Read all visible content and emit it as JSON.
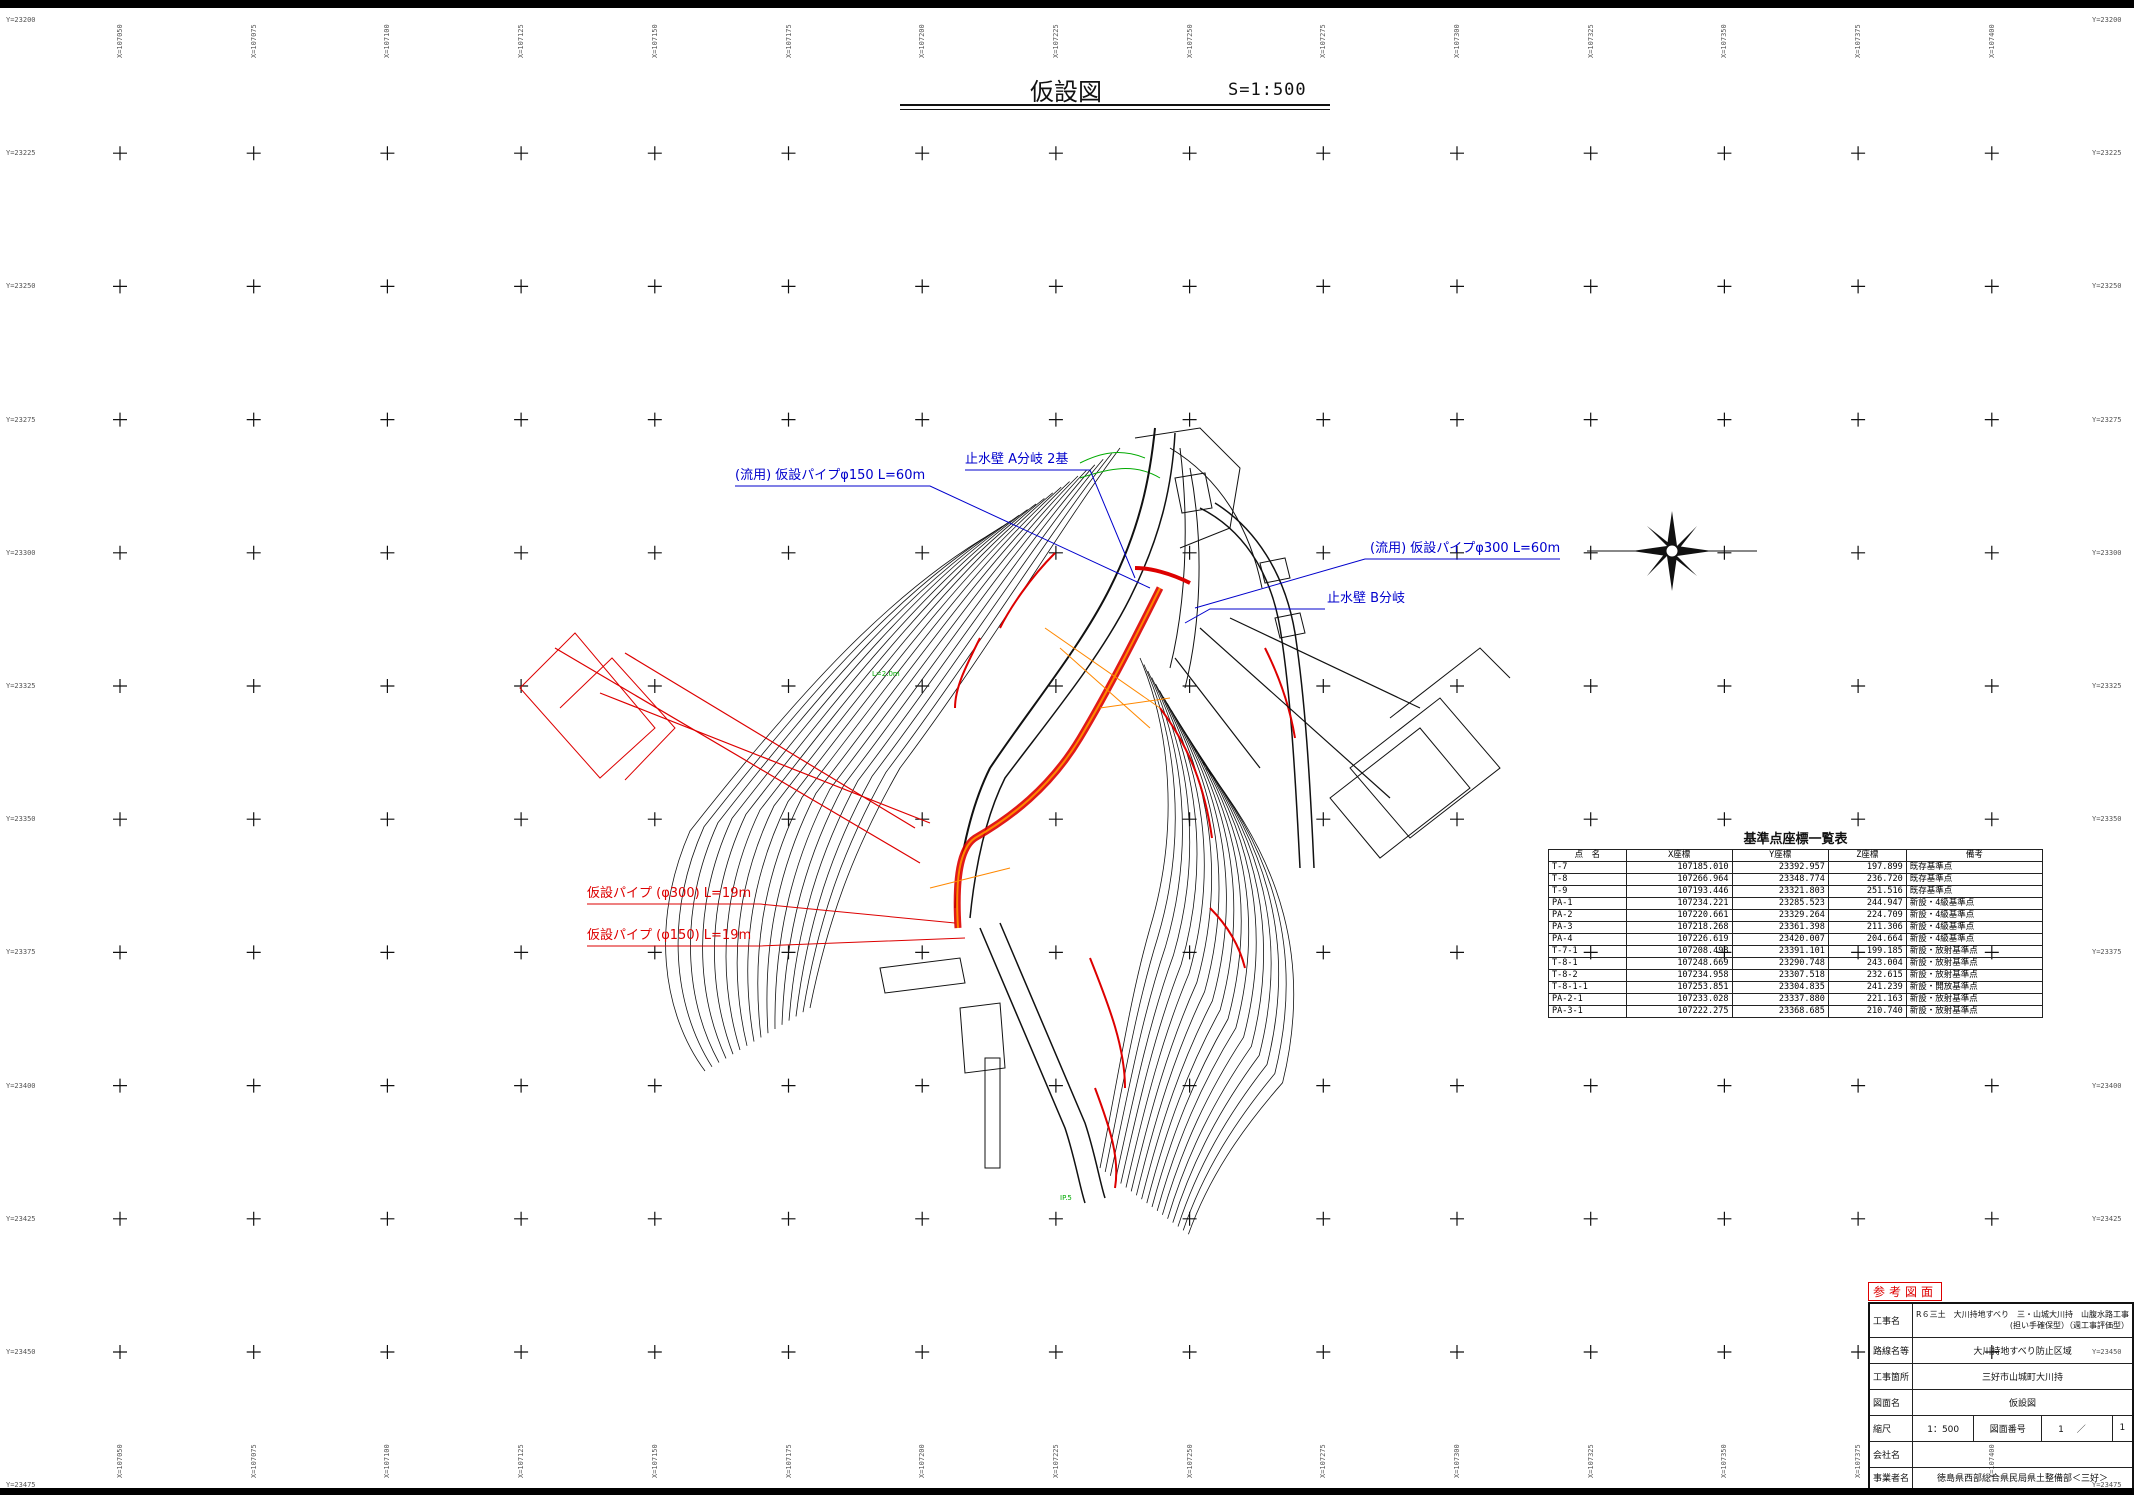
{
  "title": {
    "main": "仮設図",
    "scale": "S=1:500"
  },
  "notes": {
    "pipe150_reuse": "(流用) 仮設パイプφ150 L=60m",
    "wall_a": "止水壁 A分岐 2基",
    "pipe300_reuse": "(流用) 仮設パイプφ300 L=60m",
    "wall_b": "止水壁 B分岐",
    "pipe300": "仮設パイプ (φ300) L=19m",
    "pipe150": "仮設パイプ (φ150) L=19m"
  },
  "grid": {
    "x_labels": [
      "X=107050",
      "X=107075",
      "X=107100",
      "X=107125",
      "X=107150",
      "X=107175",
      "X=107200",
      "X=107225",
      "X=107250",
      "X=107275",
      "X=107300",
      "X=107325",
      "X=107350",
      "X=107375",
      "X=107400"
    ],
    "y_labels": [
      "Y=23200",
      "Y=23225",
      "Y=23250",
      "Y=23275",
      "Y=23300",
      "Y=23325",
      "Y=23350",
      "Y=23375",
      "Y=23400",
      "Y=23425",
      "Y=23450",
      "Y=23475"
    ]
  },
  "benchmark_table": {
    "title": "基準点座標一覧表",
    "headers": [
      "点　名",
      "X座標",
      "Y座標",
      "Z座標",
      "備考"
    ],
    "rows": [
      [
        "T-7",
        "107185.010",
        "23392.957",
        "197.899",
        "既存基準点"
      ],
      [
        "T-8",
        "107266.964",
        "23348.774",
        "236.720",
        "既存基準点"
      ],
      [
        "T-9",
        "107193.446",
        "23321.803",
        "251.516",
        "既存基準点"
      ],
      [
        "PA-1",
        "107234.221",
        "23285.523",
        "244.947",
        "新設・4級基準点"
      ],
      [
        "PA-2",
        "107220.661",
        "23329.264",
        "224.709",
        "新設・4級基準点"
      ],
      [
        "PA-3",
        "107218.268",
        "23361.398",
        "211.306",
        "新設・4級基準点"
      ],
      [
        "PA-4",
        "107226.619",
        "23420.007",
        "204.664",
        "新設・4級基準点"
      ],
      [
        "T-7-1",
        "107208.498",
        "23391.101",
        "199.185",
        "新設・放射基準点"
      ],
      [
        "T-8-1",
        "107248.669",
        "23290.748",
        "243.004",
        "新設・放射基準点"
      ],
      [
        "T-8-2",
        "107234.958",
        "23307.518",
        "232.615",
        "新設・放射基準点"
      ],
      [
        "T-8-1-1",
        "107253.851",
        "23304.835",
        "241.239",
        "新設・開放基準点"
      ],
      [
        "PA-2-1",
        "107233.028",
        "23337.880",
        "221.163",
        "新設・放射基準点"
      ],
      [
        "PA-3-1",
        "107222.275",
        "23368.685",
        "210.740",
        "新設・放射基準点"
      ]
    ]
  },
  "title_block": {
    "reference": "参考図面",
    "rows": [
      {
        "label": "工事名",
        "value": "R６三土　大川持地すべり　三・山城大川持　山腹水路工事",
        "value2": "(担い手確保型）（週工事評価型）"
      },
      {
        "label": "路線名等",
        "value": "大川持地すべり防止区域"
      },
      {
        "label": "工事箇所",
        "value": "三好市山城町大川持"
      },
      {
        "label": "図面名",
        "value": "仮設図"
      }
    ],
    "scale_label": "縮尺",
    "scale_value": "1：500",
    "drawing_no_label": "図面番号",
    "drawing_no": "1",
    "drawing_sep": "／",
    "drawing_total": "1",
    "company_label": "会社名",
    "company_value": "",
    "owner_label": "事業者名",
    "owner_value": "徳島県西部総合県民局県土整備部＜三好＞"
  },
  "colors": {
    "road": "#dd0000",
    "pipe": "#ee6600",
    "leader_blue": "#0000cc",
    "contour": "#111111",
    "green_text": "#00aa00"
  }
}
